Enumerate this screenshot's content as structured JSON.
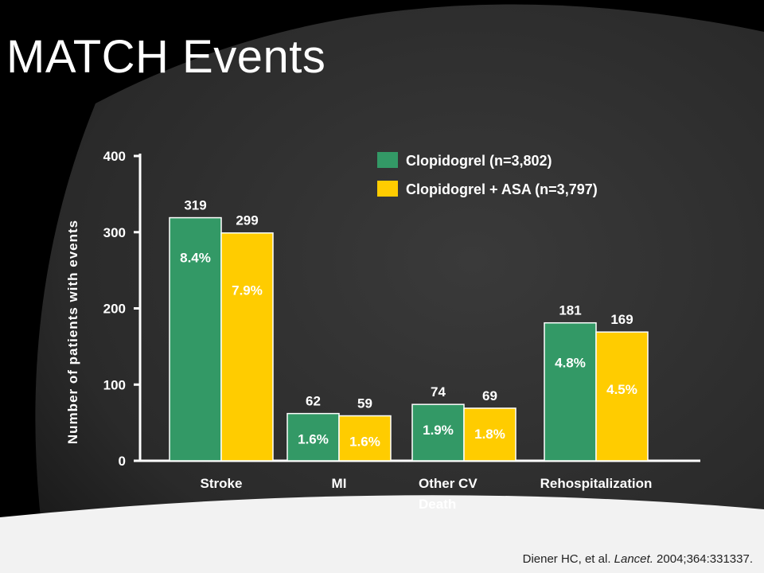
{
  "slide": {
    "title": "MATCH Events",
    "citation_authors": "Diener HC,  et al.",
    "citation_journal": "Lancet.",
    "citation_ref": "2004;364:331337."
  },
  "colors": {
    "series1": "#339966",
    "series2": "#FFCC00",
    "text": "#FFFFFF"
  },
  "chart_data": {
    "type": "bar",
    "title": "",
    "categories": [
      "Stroke",
      "MI",
      "Other CV Death",
      "Rehospitalization"
    ],
    "category_lines": [
      [
        "Stroke"
      ],
      [
        "MI"
      ],
      [
        "Other CV",
        "Death"
      ],
      [
        "Rehospitalization"
      ]
    ],
    "series": [
      {
        "name": "Clopidogrel (n=3,802)",
        "color": "#339966",
        "values": [
          319,
          62,
          74,
          181
        ],
        "percent_labels": [
          "8.4%",
          "1.6%",
          "1.9%",
          "4.8%"
        ]
      },
      {
        "name": "Clopidogrel + ASA (n=3,797)",
        "color": "#FFCC00",
        "values": [
          299,
          59,
          69,
          169
        ],
        "percent_labels": [
          "7.9%",
          "1.6%",
          "1.8%",
          "4.5%"
        ]
      }
    ],
    "xlabel": "",
    "ylabel": "Number of patients with events",
    "ylim": [
      0,
      400
    ],
    "yticks": [
      0,
      100,
      200,
      300,
      400
    ],
    "grid": false,
    "legend_position": "top-right"
  }
}
